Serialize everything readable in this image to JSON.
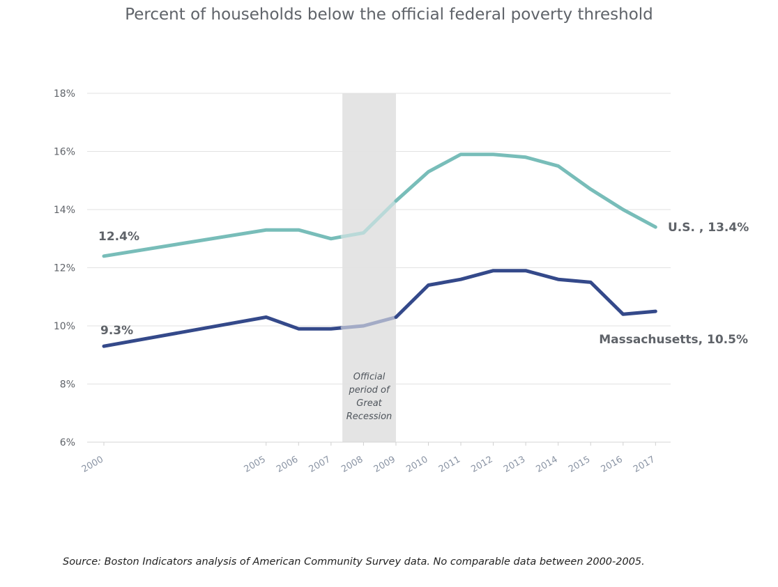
{
  "chart_data": {
    "type": "line",
    "title": "Percent of households below the official federal poverty threshold",
    "xlabel": "",
    "ylabel": "",
    "ylim": [
      6,
      18
    ],
    "yticks": [
      6,
      8,
      10,
      12,
      14,
      16,
      18
    ],
    "ytick_labels": [
      "6%",
      "8%",
      "10%",
      "12%",
      "14%",
      "16%",
      "18%"
    ],
    "x": [
      2000,
      2005,
      2006,
      2007,
      2008,
      2009,
      2010,
      2011,
      2012,
      2013,
      2014,
      2015,
      2016,
      2017
    ],
    "xtick_labels": [
      "2000",
      "2005",
      "2006",
      "2007",
      "2008",
      "2009",
      "2010",
      "2011",
      "2012",
      "2013",
      "2014",
      "2015",
      "2016",
      "2017"
    ],
    "series": [
      {
        "name": "U.S.",
        "color": "#78bdb9",
        "faded_color": "#b9d9d8",
        "values": [
          12.4,
          13.3,
          13.3,
          13.0,
          13.2,
          14.3,
          15.3,
          15.9,
          15.9,
          15.8,
          15.5,
          14.7,
          14.0,
          13.4
        ],
        "start_label": "12.4%",
        "end_label": "U.S. , 13.4%"
      },
      {
        "name": "Massachusetts",
        "color": "#34498a",
        "faded_color": "#a3abc6",
        "values": [
          9.3,
          10.3,
          9.9,
          9.9,
          10.0,
          10.3,
          11.4,
          11.6,
          11.9,
          11.9,
          11.6,
          11.5,
          10.4,
          10.5
        ],
        "start_label": "9.3%",
        "end_label": "Massachusetts, 10.5%"
      }
    ],
    "shaded_period": {
      "x_start": 2007.35,
      "x_end": 2009,
      "color": "#e4e4e4",
      "label_lines": [
        "Official",
        "period of",
        "Great",
        "Recession"
      ]
    },
    "grid": true,
    "legend": "none"
  },
  "source": "Source: Boston Indicators analysis of American Community Survey data. No comparable data between 2000-2005."
}
